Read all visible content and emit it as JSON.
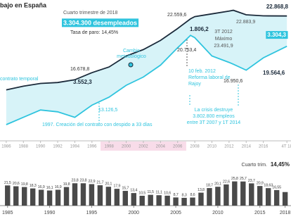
{
  "chart_data": [
    {
      "type": "line",
      "title": "bajo en España",
      "x": [
        1986,
        1988,
        1990,
        1992,
        1994,
        1996,
        1998,
        2000,
        2002,
        2004,
        2006,
        2007.5,
        2008,
        2010,
        2012,
        2012.5,
        2014,
        2016,
        2018.75
      ],
      "series": [
        {
          "color": "#1b2a3a",
          "values": [
            14800,
            15200,
            15500,
            15600,
            15900,
            16678.8,
            17300,
            18500,
            19200,
            20200,
            21500,
            22559.6,
            22800,
            23100,
            23400,
            23491.9,
            23000,
            22883.9,
            22868.8
          ]
        },
        {
          "color": "#2fc4de",
          "values": [
            11000,
            11800,
            12600,
            12400,
            11800,
            13126.5,
            14000,
            15300,
            16200,
            17500,
            19400,
            20753.4,
            20500,
            18500,
            17800,
            17600,
            16950.6,
            18300,
            19564.6
          ]
        }
      ],
      "fill_between": "#d7f3f8",
      "xlim": [
        1985.6,
        2018.9
      ],
      "xticks": [
        1986,
        1988,
        1990,
        1992,
        1994,
        1996,
        1998,
        2000,
        2002,
        2004,
        2006,
        2008,
        2010,
        2012,
        2014,
        2016,
        {
          "value": 2018.75,
          "label": "4T 18"
        }
      ],
      "ylim": [
        10000,
        24000
      ],
      "shaded_xrange": [
        1997,
        2007
      ],
      "shaded_color": "#f8dce9",
      "annotations": [
        "22.868,8",
        "Cuarto trimestre de 2018",
        "3.304.300 desempleados",
        "Tasa de paro: 14,45%",
        "22.559,6",
        "1.806,2",
        "3T 2012",
        "Máximo",
        "23.491,9",
        "22.883,9",
        "3.304,3",
        "Cambio",
        "metodológico",
        "16.678,8",
        "3.552,3",
        "20.753,4",
        "13.126,5",
        "10 feb. 2012",
        "Reforma laboral de",
        "Rajoy",
        "16.950,6",
        "19.564,6",
        "contrato temporal",
        "1997. Creación del contrato con despido a 33 días",
        "La crisis destruye",
        "3.802.800 empleos",
        "entre 3T 2007 y 1T 2014"
      ]
    },
    {
      "type": "bar",
      "x": [
        1985,
        1986,
        1987,
        1988,
        1989,
        1990,
        1991,
        1992,
        1993,
        1994,
        1995,
        1996,
        1997,
        1998,
        1999,
        2000,
        2001,
        2002,
        2003,
        2004,
        2005,
        2006,
        2007,
        2008,
        2009,
        2010,
        2011,
        2012,
        2013,
        2014,
        2015,
        2016,
        2017,
        2018
      ],
      "values": [
        21.5,
        20.6,
        19.8,
        18.3,
        16.9,
        16.1,
        16.9,
        19.8,
        23.8,
        23.8,
        22.9,
        21.7,
        20.1,
        17.9,
        15.7,
        13.4,
        10.5,
        11.5,
        11.1,
        10.6,
        8.7,
        8.3,
        8.6,
        13.8,
        18.7,
        20.1,
        22.6,
        25.8,
        25.7,
        23.7,
        20.9,
        18.63,
        16.55,
        14.45
      ],
      "value_labels": [
        "21,5",
        "20,6",
        "19,8",
        "18,3",
        "16,9",
        "16,1",
        "16,9",
        "19,8",
        "23,8",
        "23,8",
        "22,9",
        "21,7",
        "20,1",
        "17,9",
        "15,7",
        "13,4",
        "10,5",
        "11,5",
        "11,1",
        "10,6",
        "8,7",
        "8,3",
        "8,6",
        "13,8",
        "18,7",
        "20,1",
        "22,6",
        "25,8",
        "25,7",
        "23,7",
        "20,9",
        "18,63",
        "16,55",
        "14,45%"
      ],
      "color": "#4a4a4a",
      "xlim": [
        1984.1,
        2018.7
      ],
      "xticks": [
        1985,
        1990,
        1995,
        2000,
        2005,
        2010,
        2015,
        2018
      ],
      "ylim": [
        0,
        30
      ],
      "annotation": "Cuarto trim."
    }
  ]
}
